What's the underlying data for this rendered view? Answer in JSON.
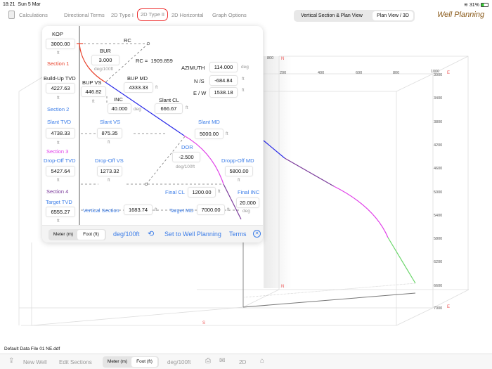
{
  "status": {
    "time": "18:21",
    "date": "Sun 5 Mar",
    "battery": "31%"
  },
  "nav": {
    "items": [
      "Calculations",
      "Directional Terms",
      "2D Type I",
      "2D Type II",
      "2D Horizontal",
      "Graph Options"
    ],
    "active": "2D Type II"
  },
  "view_toggle": {
    "options": [
      "Vertical Section & Plan View",
      "Plan View / 3D"
    ],
    "selected": "Plan View / 3D"
  },
  "app_title": "Well Planning",
  "plot3d": {
    "x_ticks": [
      "800",
      "200",
      "400",
      "600",
      "800",
      "1000"
    ],
    "z_ticks": [
      "3000",
      "3400",
      "3800",
      "4200",
      "4600",
      "5000",
      "5400",
      "5800",
      "6200",
      "6600",
      "7000"
    ],
    "directions": {
      "n": "N",
      "e": "E",
      "s": "S"
    },
    "colors": {
      "build": "#e8402a",
      "slant": "#2a2ae8",
      "drop": "#e040e8",
      "hold": "#7a3a9a",
      "target": "#6ad66a"
    }
  },
  "popup": {
    "kop": {
      "label": "KOP",
      "value": "3000.00",
      "unit": "ft"
    },
    "rc_label": "RC",
    "section1": "Section 1",
    "bur": {
      "label": "BUR",
      "value": "3.000",
      "unit": "deg/100ft"
    },
    "rc": {
      "label": "RC =",
      "value": "1909.859"
    },
    "azimuth": {
      "label": "AZIMUTH",
      "value": "114.000",
      "unit": "deg"
    },
    "ns": {
      "label": "N /S",
      "value": "-684.84",
      "unit": "ft"
    },
    "ew": {
      "label": "E / W",
      "value": "1538.18",
      "unit": "ft"
    },
    "buildup_tvd": {
      "label": "Build-Up TVD",
      "value": "4227.63",
      "unit": "ft"
    },
    "bup_vs": {
      "label": "BUP VS",
      "value": "446.82",
      "unit": "ft"
    },
    "bup_md": {
      "label": "BUP MD",
      "value": "4333.33",
      "unit": "ft"
    },
    "inc": {
      "label": "INC",
      "value": "40.000",
      "unit": "deg"
    },
    "slant_cl": {
      "label": "Slant CL",
      "value": "666.67",
      "unit": "ft"
    },
    "section2": "Section 2",
    "slant_tvd": {
      "label": "Slant TVD",
      "value": "4738.33",
      "unit": "ft"
    },
    "slant_vs": {
      "label": "Slant VS",
      "value": "875.35",
      "unit": "ft"
    },
    "slant_md": {
      "label": "Slant MD",
      "value": "5000.00",
      "unit": "ft"
    },
    "section3": "Section 3",
    "dor": {
      "label": "DOR",
      "value": "-2.500",
      "unit": "deg/100ft"
    },
    "dropoff_tvd": {
      "label": "Drop-Off TVD",
      "value": "5427.64",
      "unit": "ft"
    },
    "dropoff_vs": {
      "label": "Drop-Off VS",
      "value": "1273.32",
      "unit": "ft"
    },
    "dropoff_md": {
      "label": "Dropp-Off MD",
      "value": "5800.00",
      "unit": "ft"
    },
    "section4": "Section 4",
    "final_cl": {
      "label": "Final CL",
      "value": "1200.00",
      "unit": "ft"
    },
    "final_inc": {
      "label": "Final INC",
      "value": "20.000",
      "unit": "deg"
    },
    "target_tvd": {
      "label": "Target TVD",
      "value": "6555.27",
      "unit": "ft"
    },
    "vertical_section": {
      "label": "Vertical Section",
      "value": "1683.74",
      "unit": "ft"
    },
    "target_md": {
      "label": "Target MD",
      "value": "7000.00",
      "unit": "ft"
    },
    "footer": {
      "units": [
        "Meter (m)",
        "Foot (ft)"
      ],
      "selected": "Foot (ft)",
      "rate_unit": "deg/100ft",
      "set_label": "Set to Well Planning",
      "terms": "Terms"
    }
  },
  "file_name": "Default Data File 01 NE.ddf",
  "bottom": {
    "new_well": "New Well",
    "edit_sections": "Edit Sections",
    "units": [
      "Meter (m)",
      "Foot (ft)"
    ],
    "selected": "Foot (ft)",
    "rate_unit": "deg/100ft",
    "mode": "2D"
  }
}
